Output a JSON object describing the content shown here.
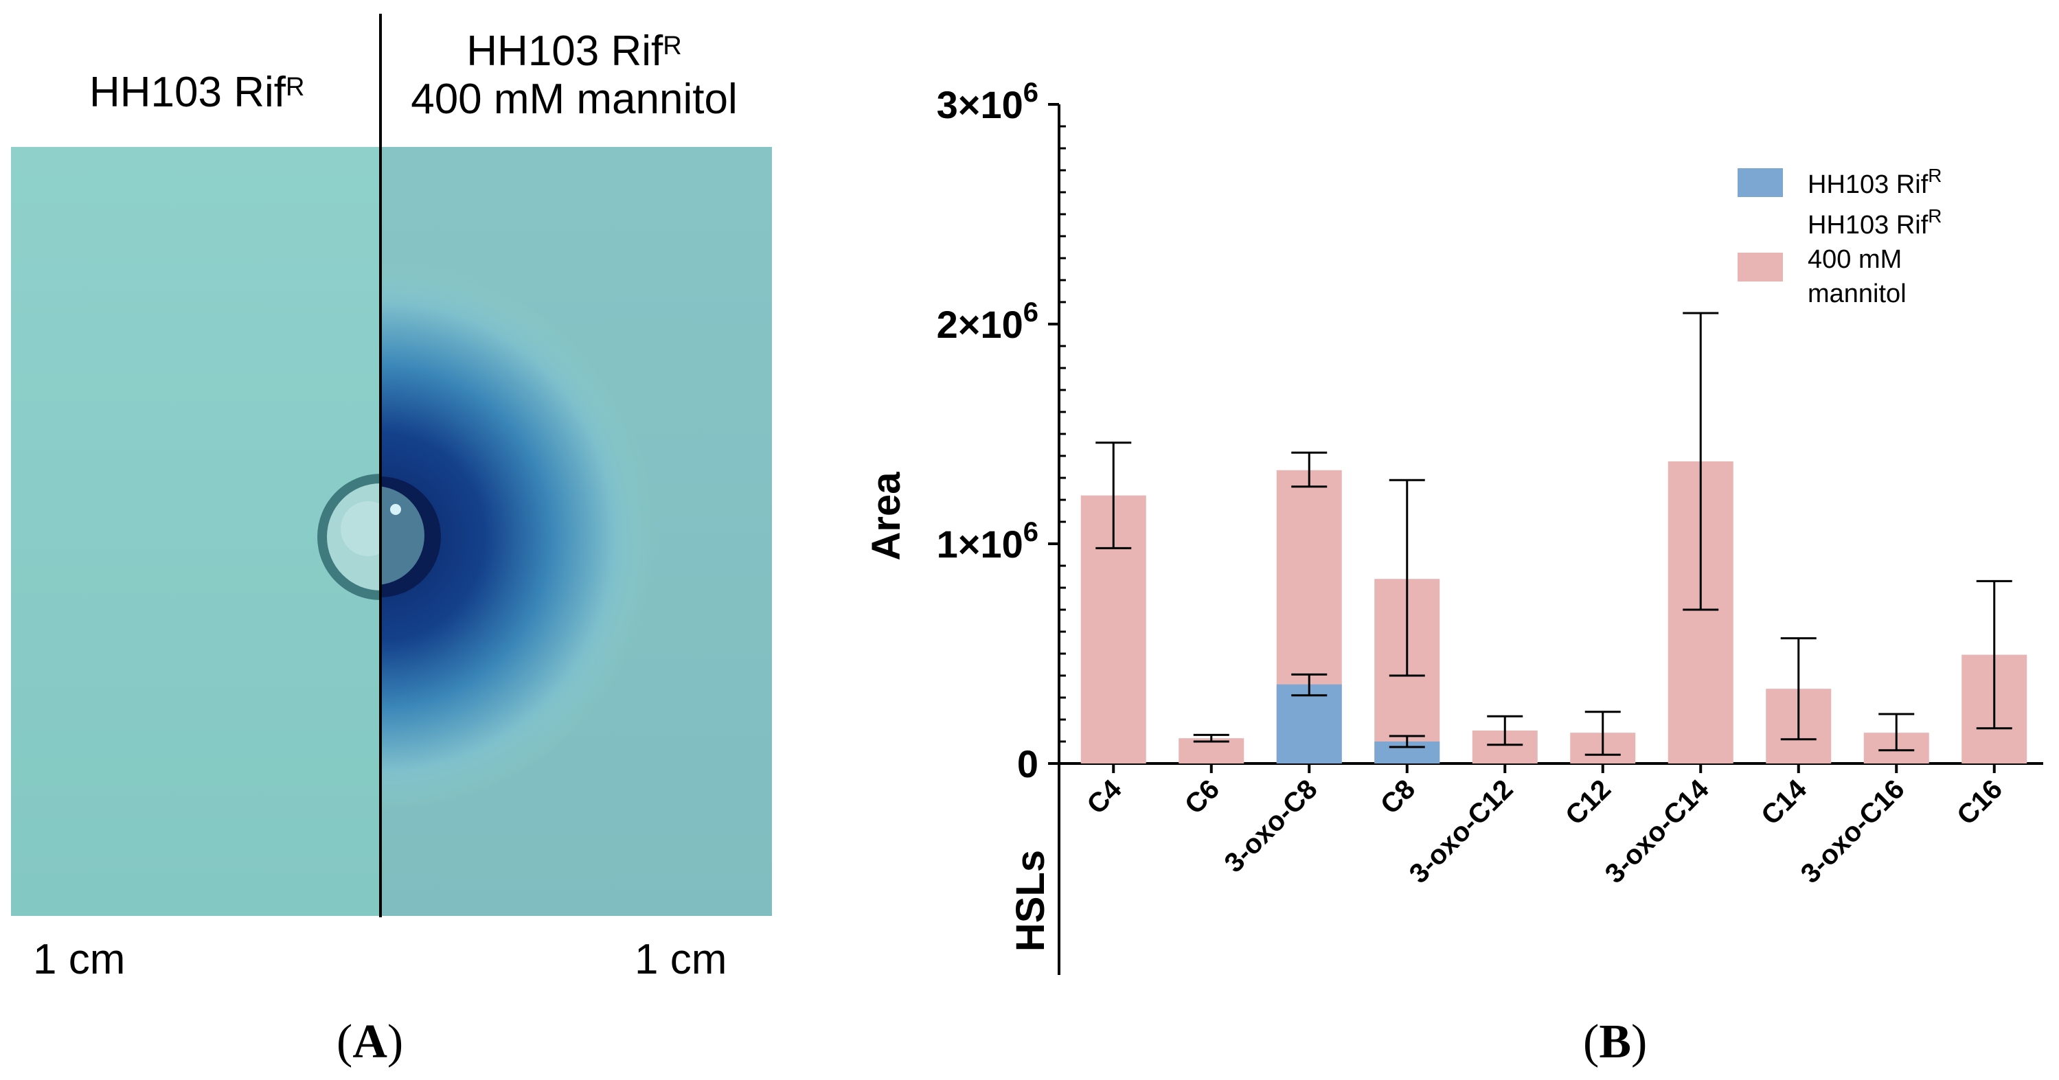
{
  "panel_a": {
    "left_header": {
      "text": "HH103 Rif",
      "sup": "R"
    },
    "right_header": {
      "line1": "HH103 Rif",
      "line1_sup": "R",
      "line2": "400 mM mannitol"
    },
    "scale_left": "1 cm",
    "scale_right": "1 cm",
    "label_open": "(",
    "label_letter": "A",
    "label_close": ")",
    "colors": {
      "plate": "#8ccdc8",
      "stain": "#0e2c6e",
      "divider": "#000000"
    }
  },
  "panel_b": {
    "label_open": "(",
    "label_letter": "B",
    "label_close": ")"
  },
  "chart_data": {
    "type": "bar",
    "title": "",
    "xlabel": "HSLs",
    "ylabel": "Area",
    "ylim": [
      0,
      3000000
    ],
    "yticks": [
      {
        "value": 0,
        "label": "0",
        "exp": ""
      },
      {
        "value": 1000000,
        "label": "1×10",
        "exp": "6"
      },
      {
        "value": 2000000,
        "label": "2×10",
        "exp": "6"
      },
      {
        "value": 3000000,
        "label": "3×10",
        "exp": "6"
      }
    ],
    "categories": [
      "C4",
      "C6",
      "3-oxo-C8",
      "C8",
      "3-oxo-C12",
      "C12",
      "3-oxo-C14",
      "C14",
      "3-oxo-C16",
      "C16"
    ],
    "series": [
      {
        "name": "HH103 Rif",
        "name_sup": "R",
        "color": "#7ba7d2",
        "values": [
          0,
          0,
          360000,
          100000,
          0,
          0,
          0,
          0,
          0,
          0
        ],
        "err_low": [
          0,
          0,
          310000,
          75000,
          0,
          0,
          0,
          0,
          0,
          0
        ],
        "err_high": [
          0,
          0,
          405000,
          125000,
          0,
          0,
          0,
          0,
          0,
          0
        ]
      },
      {
        "name": "HH103 Rif",
        "name_sup": "R",
        "name_lines": [
          "400 mM",
          "mannitol"
        ],
        "color": "#e8b4b4",
        "values": [
          1220000,
          115000,
          1335000,
          840000,
          150000,
          140000,
          1375000,
          340000,
          140000,
          495000
        ],
        "err_low": [
          980000,
          100000,
          1260000,
          400000,
          85000,
          40000,
          700000,
          110000,
          60000,
          160000
        ],
        "err_high": [
          1460000,
          130000,
          1415000,
          1290000,
          215000,
          235000,
          2050000,
          570000,
          225000,
          830000
        ]
      }
    ],
    "legend_position": "top-right",
    "grid": false
  }
}
